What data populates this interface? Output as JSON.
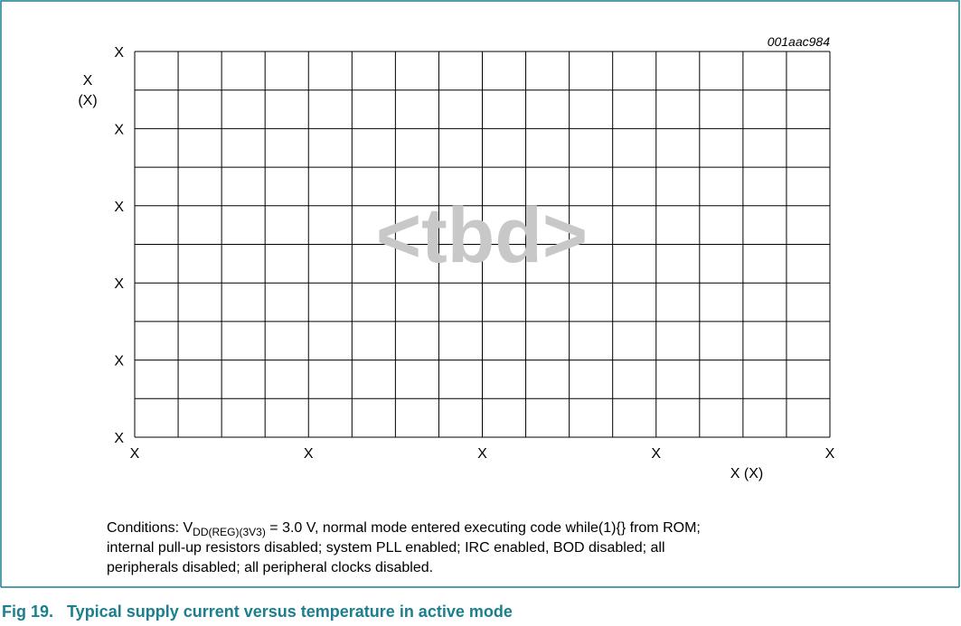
{
  "figure_id": "001aac984",
  "placeholder": "<tbd>",
  "y_axis": {
    "label": "X",
    "unit": "(X)",
    "ticks": [
      "X",
      "X",
      "X",
      "X",
      "X",
      "X"
    ]
  },
  "x_axis": {
    "label": "X (X)",
    "ticks": [
      "X",
      "X",
      "X",
      "X",
      "X"
    ]
  },
  "conditions": {
    "prefix": "Conditions: V",
    "subscript": "DD(REG)(3V3)",
    "line1_rest": " = 3.0 V, normal mode entered executing code while(1){} from ROM;",
    "line2": "internal pull-up resistors disabled; system PLL enabled; IRC enabled, BOD disabled; all",
    "line3": "peripherals disabled; all peripheral clocks disabled."
  },
  "caption": "Fig 19.   Typical supply current versus temperature in active mode"
}
